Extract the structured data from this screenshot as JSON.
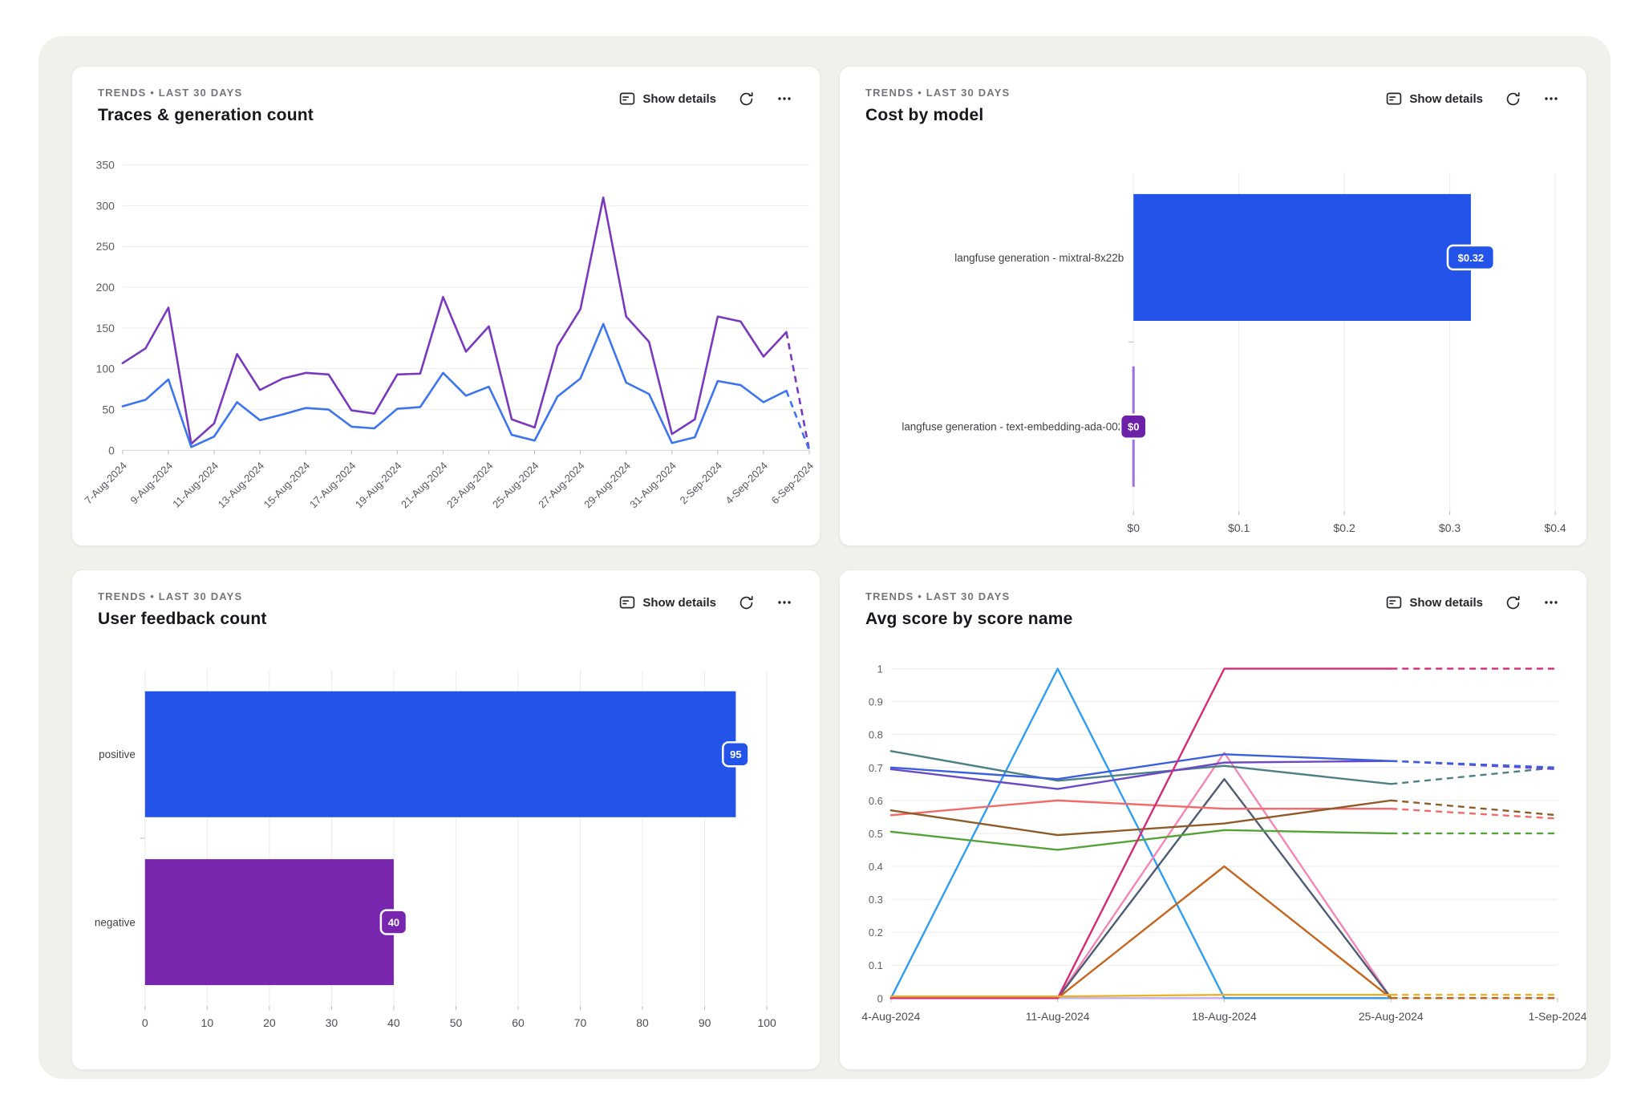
{
  "panels": [
    {
      "eyebrow": "TRENDS • LAST 30 DAYS",
      "title": "Traces & generation count",
      "show_details": "Show details"
    },
    {
      "eyebrow": "TRENDS • LAST 30 DAYS",
      "title": "Cost by model",
      "show_details": "Show details"
    },
    {
      "eyebrow": "TRENDS • LAST 30 DAYS",
      "title": "User feedback count",
      "show_details": "Show details"
    },
    {
      "eyebrow": "TRENDS • LAST 30 DAYS",
      "title": "Avg score by score name",
      "show_details": "Show details"
    }
  ],
  "icons": {
    "show_details": "details-panel-icon",
    "refresh": "refresh-icon",
    "more": "more-menu-icon"
  },
  "theme": {
    "page_bg": "#ffffff",
    "container_bg": "#f0f1ea",
    "card_bg": "#ffffff",
    "grid_line": "#ebece8",
    "axis_line": "#d8d9d5",
    "tick_mark": "#b6b9bd",
    "tick_label": "#5c5f66",
    "category_label": "#3e4147",
    "bar_blue": "#2353e8",
    "bar_purple": "#7726ad"
  },
  "chart_data": [
    {
      "panel": "Traces & generation count",
      "type": "line",
      "x": [
        "7-Aug-2024",
        "8-Aug-2024",
        "9-Aug-2024",
        "10-Aug-2024",
        "11-Aug-2024",
        "12-Aug-2024",
        "13-Aug-2024",
        "14-Aug-2024",
        "15-Aug-2024",
        "16-Aug-2024",
        "17-Aug-2024",
        "18-Aug-2024",
        "19-Aug-2024",
        "20-Aug-2024",
        "21-Aug-2024",
        "22-Aug-2024",
        "23-Aug-2024",
        "24-Aug-2024",
        "25-Aug-2024",
        "26-Aug-2024",
        "27-Aug-2024",
        "28-Aug-2024",
        "29-Aug-2024",
        "30-Aug-2024",
        "31-Aug-2024",
        "1-Sep-2024",
        "2-Sep-2024",
        "3-Sep-2024",
        "4-Sep-2024",
        "5-Sep-2024",
        "6-Sep-2024"
      ],
      "x_label_every": 2,
      "ylim": [
        0,
        350
      ],
      "y_ticks": [
        0,
        50,
        100,
        150,
        200,
        250,
        300,
        350
      ],
      "grid": true,
      "legend": "none",
      "dashed_tail_points": 1,
      "series": [
        {
          "name": "purple-line",
          "color": "#7a38be",
          "values": [
            107,
            125,
            175,
            8,
            33,
            118,
            74,
            88,
            95,
            93,
            49,
            45,
            93,
            94,
            188,
            121,
            152,
            38,
            28,
            128,
            173,
            310,
            164,
            133,
            20,
            38,
            164,
            158,
            115,
            145,
            0
          ]
        },
        {
          "name": "blue-line",
          "color": "#3d74f0",
          "values": [
            54,
            62,
            87,
            4,
            17,
            59,
            37,
            44,
            52,
            50,
            29,
            27,
            51,
            53,
            95,
            67,
            78,
            19,
            12,
            66,
            88,
            155,
            83,
            69,
            9,
            16,
            85,
            80,
            59,
            73,
            0
          ]
        }
      ]
    },
    {
      "panel": "Cost by model",
      "type": "bar",
      "orientation": "horizontal",
      "xlim": [
        0,
        0.4
      ],
      "x_tick_values": [
        0,
        0.1,
        0.2,
        0.3,
        0.4
      ],
      "x_tick_labels": [
        "$0",
        "$0.1",
        "$0.2",
        "$0.3",
        "$0.4"
      ],
      "grid": true,
      "bars": [
        {
          "category": "langfuse generation - mixtral-8x22b",
          "value": 0.32,
          "value_label": "$0.32",
          "color": "#2353e8"
        },
        {
          "category": "langfuse generation - text-embedding-ada-002",
          "value": 0,
          "value_label": "$0",
          "color": "#6d21a8",
          "zero_line_color": "#a06fe0"
        }
      ]
    },
    {
      "panel": "User feedback count",
      "type": "bar",
      "orientation": "horizontal",
      "xlim": [
        0,
        100
      ],
      "x_tick_values": [
        0,
        10,
        20,
        30,
        40,
        50,
        60,
        70,
        80,
        90,
        100
      ],
      "x_tick_labels": [
        "0",
        "10",
        "20",
        "30",
        "40",
        "50",
        "60",
        "70",
        "80",
        "90",
        "100"
      ],
      "grid": true,
      "bars": [
        {
          "category": "positive",
          "value": 95,
          "value_label": "95",
          "color": "#2353e8"
        },
        {
          "category": "negative",
          "value": 40,
          "value_label": "40",
          "color": "#7726ad"
        }
      ]
    },
    {
      "panel": "Avg score by score name",
      "type": "line",
      "x": [
        "4-Aug-2024",
        "11-Aug-2024",
        "18-Aug-2024",
        "25-Aug-2024",
        "1-Sep-2024"
      ],
      "x_label_every": 1,
      "ylim": [
        0,
        1
      ],
      "y_ticks": [
        0,
        0.1,
        0.2,
        0.3,
        0.4,
        0.5,
        0.6,
        0.7,
        0.8,
        0.9,
        1
      ],
      "grid": true,
      "legend": "none",
      "dashed_tail_points": 1,
      "series": [
        {
          "name": "lavender-line",
          "color": "#c0aef0",
          "values": [
            0,
            0,
            0,
            0,
            0
          ]
        },
        {
          "name": "dodger-blue-line",
          "color": "#2e9df2",
          "values": [
            0,
            1,
            0,
            0,
            0
          ]
        },
        {
          "name": "pink-line",
          "color": "#f585b5",
          "values": [
            0,
            0,
            0.745,
            0,
            0
          ]
        },
        {
          "name": "slate-line",
          "color": "#4d5b74",
          "values": [
            0,
            0,
            0.665,
            0,
            0
          ]
        },
        {
          "name": "chocolate-line",
          "color": "#c4641d",
          "values": [
            0,
            0,
            0.4,
            0,
            0
          ]
        },
        {
          "name": "teal-line",
          "color": "#4d8086",
          "values": [
            0.75,
            0.66,
            0.705,
            0.65,
            0.7
          ]
        },
        {
          "name": "salmon-line",
          "color": "#f26a6a",
          "values": [
            0.555,
            0.6,
            0.575,
            0.575,
            0.545
          ]
        },
        {
          "name": "brown-line",
          "color": "#8e5c28",
          "values": [
            0.57,
            0.495,
            0.53,
            0.6,
            0.555
          ]
        },
        {
          "name": "green-line",
          "color": "#55a338",
          "values": [
            0.505,
            0.45,
            0.51,
            0.5,
            0.5
          ]
        },
        {
          "name": "violet-line",
          "color": "#6b4ac6",
          "values": [
            0.695,
            0.635,
            0.715,
            0.72,
            0.695
          ]
        },
        {
          "name": "royal-blue-line",
          "color": "#3a5fdf",
          "values": [
            0.7,
            0.665,
            0.74,
            0.72,
            0.7
          ]
        },
        {
          "name": "magenta-line",
          "color": "#d62a78",
          "values": [
            0,
            0,
            1,
            1,
            1
          ]
        },
        {
          "name": "amber-line",
          "color": "#eab229",
          "values": [
            0.005,
            0.005,
            0.01,
            0.01,
            0.01
          ]
        }
      ]
    }
  ]
}
